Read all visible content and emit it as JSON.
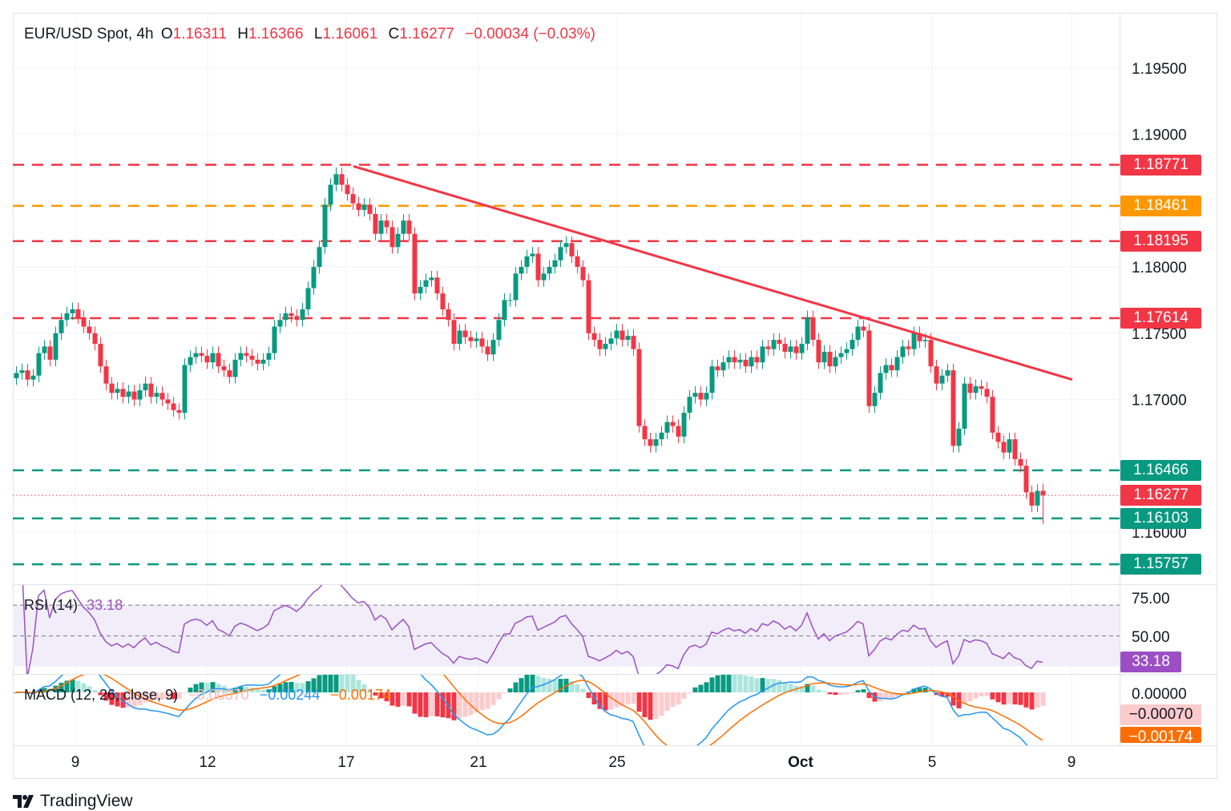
{
  "header": {
    "symbol": "EUR/USD Spot, 4h",
    "o_label": "O",
    "o": "1.16311",
    "h_label": "H",
    "h": "1.16366",
    "l_label": "L",
    "l": "1.16061",
    "c_label": "C",
    "c": "1.16277",
    "change": "−0.00034 (−0.03%)"
  },
  "rsi": {
    "label": "RSI (14)",
    "value": "33.18",
    "ticks": [
      "75.00",
      "50.00"
    ],
    "tag": "33.18",
    "color": "#9c4fc4"
  },
  "macd": {
    "label": "MACD (12, 26, close, 9)",
    "hist": "−0.00070",
    "macd": "−0.00244",
    "signal": "−0.00174",
    "ticks": [
      "0.00000"
    ],
    "hist_tag": "−0.00070",
    "signal_tag": "−0.00174",
    "macd_color": "#2196f3",
    "signal_color": "#ff6d00"
  },
  "branding": {
    "logo": "TradingView"
  },
  "colors": {
    "up": "#089981",
    "down": "#f23645",
    "resistance": "#f23645",
    "pivot": "#ff9800",
    "support": "#089981",
    "trendline": "#f23645"
  },
  "chart_data": {
    "type": "candlestick",
    "title": "EUR/USD Spot, 4h",
    "x_ticks": [
      "9",
      "12",
      "17",
      "21",
      "25",
      "Oct",
      "5",
      "9"
    ],
    "y_ticks": [
      "1.19500",
      "1.19000",
      "1.18000",
      "1.17500",
      "1.17000",
      "1.16000"
    ],
    "ylim": [
      1.1555,
      1.1985
    ],
    "last_candle": {
      "open": 1.16311,
      "high": 1.16366,
      "low": 1.16061,
      "close": 1.16277
    },
    "closes": [
      1.172,
      1.1722,
      1.1715,
      1.1718,
      1.1735,
      1.174,
      1.173,
      1.175,
      1.176,
      1.1765,
      1.1768,
      1.1762,
      1.1755,
      1.175,
      1.1742,
      1.1725,
      1.1712,
      1.1705,
      1.1708,
      1.1702,
      1.1706,
      1.17,
      1.1707,
      1.1712,
      1.1702,
      1.1705,
      1.17,
      1.1697,
      1.1692,
      1.169,
      1.1726,
      1.1732,
      1.1735,
      1.1733,
      1.1728,
      1.1735,
      1.1725,
      1.1722,
      1.1717,
      1.173,
      1.1735,
      1.1733,
      1.173,
      1.1727,
      1.173,
      1.1735,
      1.1755,
      1.176,
      1.1765,
      1.1763,
      1.176,
      1.1768,
      1.1784,
      1.18,
      1.1815,
      1.1847,
      1.1862,
      1.187,
      1.1862,
      1.1855,
      1.1848,
      1.1843,
      1.1847,
      1.184,
      1.1825,
      1.1835,
      1.183,
      1.1815,
      1.1825,
      1.1835,
      1.1825,
      1.178,
      1.1785,
      1.179,
      1.1792,
      1.178,
      1.1768,
      1.176,
      1.1742,
      1.1752,
      1.1747,
      1.1744,
      1.1746,
      1.174,
      1.1734,
      1.1745,
      1.176,
      1.1775,
      1.1775,
      1.1795,
      1.18,
      1.1808,
      1.181,
      1.179,
      1.1795,
      1.18,
      1.1805,
      1.1815,
      1.1818,
      1.1808,
      1.18,
      1.179,
      1.175,
      1.1745,
      1.1738,
      1.1742,
      1.1746,
      1.1752,
      1.1745,
      1.1748,
      1.1738,
      1.168,
      1.167,
      1.1665,
      1.167,
      1.1675,
      1.1683,
      1.168,
      1.1672,
      1.169,
      1.1702,
      1.1705,
      1.17,
      1.1705,
      1.1725,
      1.1722,
      1.1728,
      1.1732,
      1.1728,
      1.173,
      1.1725,
      1.1732,
      1.1728,
      1.174,
      1.1738,
      1.1745,
      1.1742,
      1.1736,
      1.174,
      1.1735,
      1.1742,
      1.1762,
      1.1745,
      1.1728,
      1.1736,
      1.1725,
      1.1732,
      1.1735,
      1.1738,
      1.1745,
      1.1755,
      1.1752,
      1.1695,
      1.1705,
      1.172,
      1.1726,
      1.1722,
      1.1732,
      1.174,
      1.1738,
      1.175,
      1.1744,
      1.1745,
      1.1725,
      1.1712,
      1.1718,
      1.1722,
      1.1665,
      1.1678,
      1.1712,
      1.1705,
      1.171,
      1.1708,
      1.1702,
      1.1675,
      1.1668,
      1.166,
      1.167,
      1.1655,
      1.165,
      1.163,
      1.162,
      1.16311,
      1.16277
    ],
    "levels": [
      {
        "price": 1.18771,
        "label": "1.18771",
        "kind": "resistance",
        "color": "#f23645"
      },
      {
        "price": 1.18461,
        "label": "1.18461",
        "kind": "pivot",
        "color": "#ff9800"
      },
      {
        "price": 1.18195,
        "label": "1.18195",
        "kind": "resistance",
        "color": "#f23645"
      },
      {
        "price": 1.17614,
        "label": "1.17614",
        "kind": "resistance",
        "color": "#f23645"
      },
      {
        "price": 1.16466,
        "label": "1.16466",
        "kind": "support",
        "color": "#089981"
      },
      {
        "price": 1.16277,
        "label": "1.16277",
        "kind": "last-price",
        "color": "#f23645"
      },
      {
        "price": 1.16103,
        "label": "1.16103",
        "kind": "support",
        "color": "#089981"
      },
      {
        "price": 1.15757,
        "label": "1.15757",
        "kind": "support",
        "color": "#089981"
      }
    ],
    "trendline": {
      "from_price": 1.1876,
      "to_price": 1.1715
    }
  }
}
